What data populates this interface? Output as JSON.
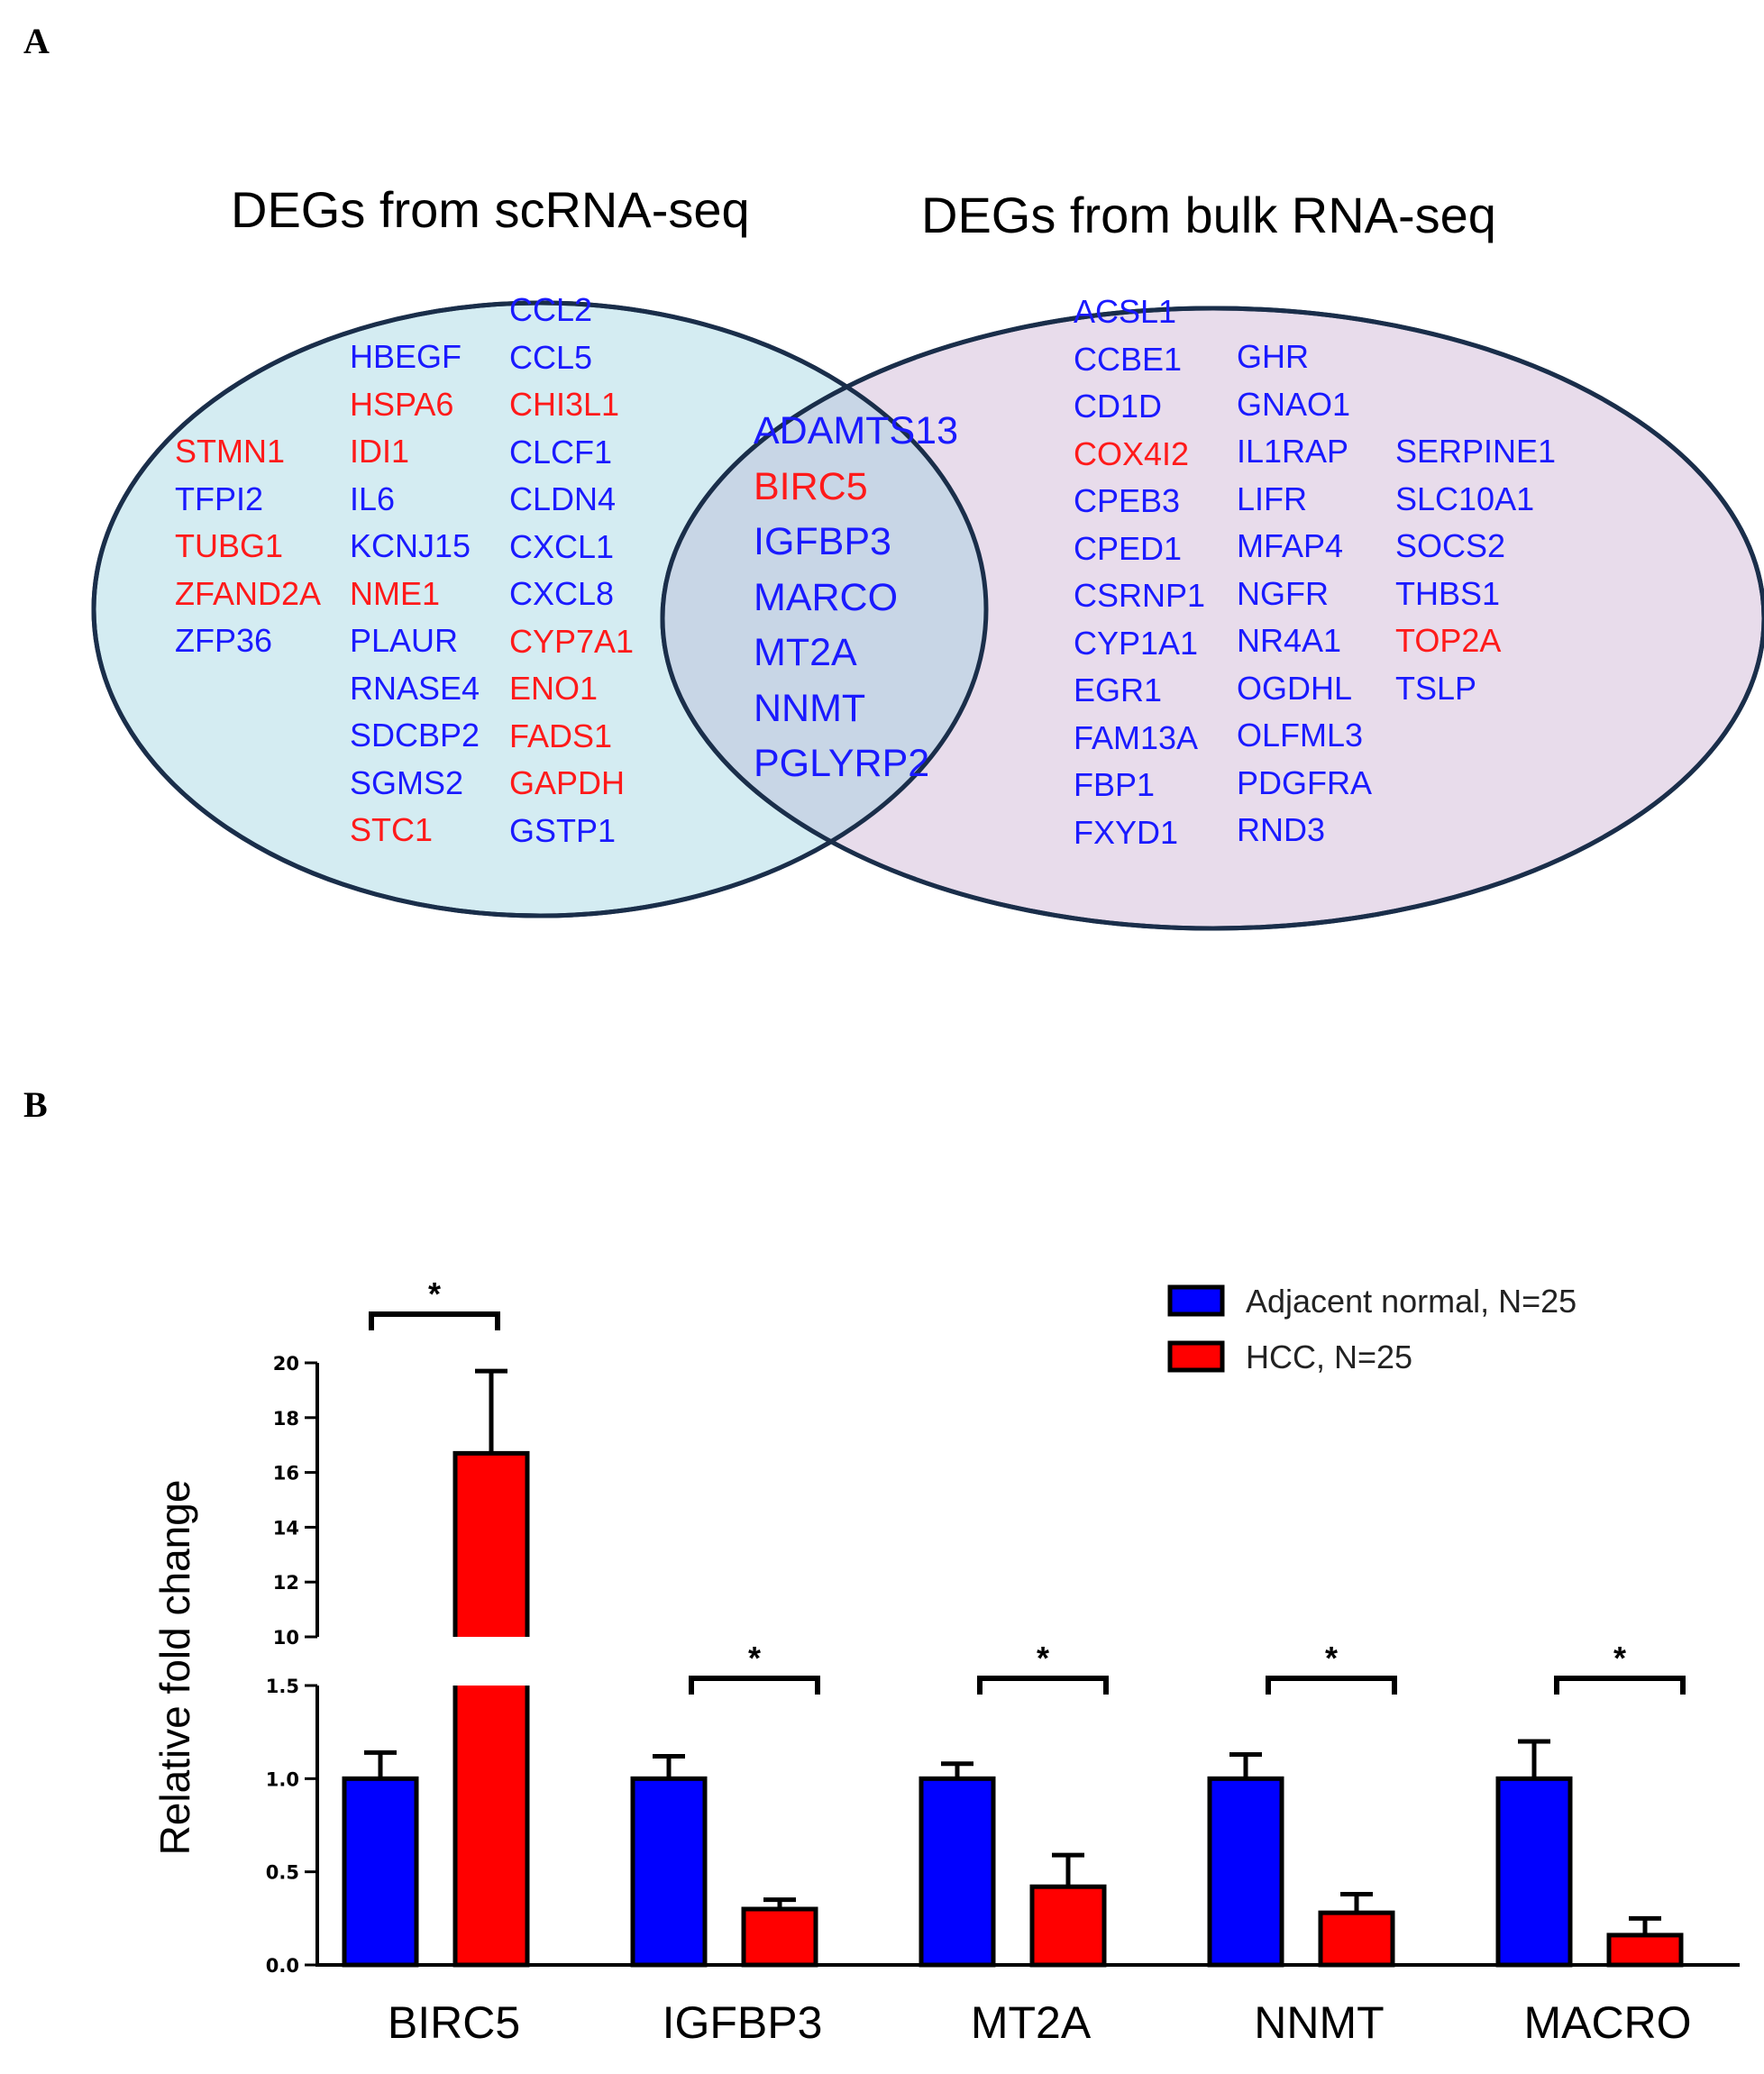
{
  "panel_a": {
    "letter": "A",
    "left_title": "DEGs from scRNA-seq",
    "right_title": "DEGs from bulk RNA-seq",
    "colors": {
      "up": "#ff1a1a",
      "down": "#1a1aff",
      "left_fill": "#d4ecf2",
      "right_fill": "#e8dceb",
      "overlap_fill": "#c8d6e6",
      "outline": "#1a2e4a"
    },
    "left_only_columns": [
      [
        {
          "name": "STMN1",
          "color": "red"
        },
        {
          "name": "TFPI2",
          "color": "blue"
        },
        {
          "name": "TUBG1",
          "color": "red"
        },
        {
          "name": "ZFAND2A",
          "color": "red"
        },
        {
          "name": "ZFP36",
          "color": "blue"
        }
      ],
      [
        {
          "name": "HBEGF",
          "color": "blue"
        },
        {
          "name": "HSPA6",
          "color": "red"
        },
        {
          "name": "IDI1",
          "color": "red"
        },
        {
          "name": "IL6",
          "color": "blue"
        },
        {
          "name": "KCNJ15",
          "color": "blue"
        },
        {
          "name": "NME1",
          "color": "red"
        },
        {
          "name": "PLAUR",
          "color": "blue"
        },
        {
          "name": "RNASE4",
          "color": "blue"
        },
        {
          "name": "SDCBP2",
          "color": "blue"
        },
        {
          "name": "SGMS2",
          "color": "blue"
        },
        {
          "name": "STC1",
          "color": "red"
        }
      ],
      [
        {
          "name": "CCL2",
          "color": "blue"
        },
        {
          "name": "CCL5",
          "color": "blue"
        },
        {
          "name": "CHI3L1",
          "color": "red"
        },
        {
          "name": "CLCF1",
          "color": "blue"
        },
        {
          "name": "CLDN4",
          "color": "blue"
        },
        {
          "name": "CXCL1",
          "color": "blue"
        },
        {
          "name": "CXCL8",
          "color": "blue"
        },
        {
          "name": "CYP7A1",
          "color": "red"
        },
        {
          "name": "ENO1",
          "color": "red"
        },
        {
          "name": "FADS1",
          "color": "red"
        },
        {
          "name": "GAPDH",
          "color": "red"
        },
        {
          "name": "GSTP1",
          "color": "blue"
        }
      ]
    ],
    "overlap": [
      {
        "name": "ADAMTS13",
        "color": "blue"
      },
      {
        "name": "BIRC5",
        "color": "red"
      },
      {
        "name": "IGFBP3",
        "color": "blue"
      },
      {
        "name": "MARCO",
        "color": "blue"
      },
      {
        "name": "MT2A",
        "color": "blue"
      },
      {
        "name": "NNMT",
        "color": "blue"
      },
      {
        "name": "PGLYRP2",
        "color": "blue"
      }
    ],
    "right_only_columns": [
      [
        {
          "name": "ACSL1",
          "color": "blue"
        },
        {
          "name": "CCBE1",
          "color": "blue"
        },
        {
          "name": "CD1D",
          "color": "blue"
        },
        {
          "name": "COX4I2",
          "color": "red"
        },
        {
          "name": "CPEB3",
          "color": "blue"
        },
        {
          "name": "CPED1",
          "color": "blue"
        },
        {
          "name": "CSRNP1",
          "color": "blue"
        },
        {
          "name": "CYP1A1",
          "color": "blue"
        },
        {
          "name": "EGR1",
          "color": "blue"
        },
        {
          "name": "FAM13A",
          "color": "blue"
        },
        {
          "name": "FBP1",
          "color": "blue"
        },
        {
          "name": "FXYD1",
          "color": "blue"
        }
      ],
      [
        {
          "name": "GHR",
          "color": "blue"
        },
        {
          "name": "GNAO1",
          "color": "blue"
        },
        {
          "name": "IL1RAP",
          "color": "blue"
        },
        {
          "name": "LIFR",
          "color": "blue"
        },
        {
          "name": "MFAP4",
          "color": "blue"
        },
        {
          "name": "NGFR",
          "color": "blue"
        },
        {
          "name": "NR4A1",
          "color": "blue"
        },
        {
          "name": "OGDHL",
          "color": "blue"
        },
        {
          "name": "OLFML3",
          "color": "blue"
        },
        {
          "name": "PDGFRA",
          "color": "blue"
        },
        {
          "name": "RND3",
          "color": "blue"
        }
      ],
      [
        {
          "name": "SERPINE1",
          "color": "blue"
        },
        {
          "name": "SLC10A1",
          "color": "blue"
        },
        {
          "name": "SOCS2",
          "color": "blue"
        },
        {
          "name": "THBS1",
          "color": "blue"
        },
        {
          "name": "TOP2A",
          "color": "red"
        },
        {
          "name": "TSLP",
          "color": "blue"
        }
      ]
    ]
  },
  "panel_b": {
    "letter": "B"
  },
  "chart_data": {
    "type": "bar",
    "title": "",
    "xlabel": "",
    "ylabel": "Relative fold change",
    "categories": [
      "BIRC5",
      "IGFBP3",
      "MT2A",
      "NNMT",
      "MACRO"
    ],
    "series": [
      {
        "name": "Adjacent normal, N=25",
        "color": "#0000ff",
        "values": [
          1.0,
          1.0,
          1.0,
          1.0,
          1.0
        ],
        "error": [
          0.14,
          0.12,
          0.08,
          0.13,
          0.2
        ]
      },
      {
        "name": "HCC, N=25",
        "color": "#ff0000",
        "values": [
          16.7,
          0.3,
          0.42,
          0.28,
          0.16
        ],
        "error": [
          3.0,
          0.05,
          0.17,
          0.1,
          0.09
        ]
      }
    ],
    "y_axis_broken": true,
    "lower_segment": {
      "ylim": [
        0,
        1.5
      ],
      "ticks": [
        "0.0",
        "0.5",
        "1.0",
        "1.5"
      ]
    },
    "upper_segment": {
      "ylim": [
        10,
        20
      ],
      "ticks": [
        "10",
        "12",
        "14",
        "16",
        "18",
        "20"
      ]
    },
    "significance": [
      "*",
      "*",
      "*",
      "*",
      "*"
    ],
    "legend_position": "top-right"
  }
}
